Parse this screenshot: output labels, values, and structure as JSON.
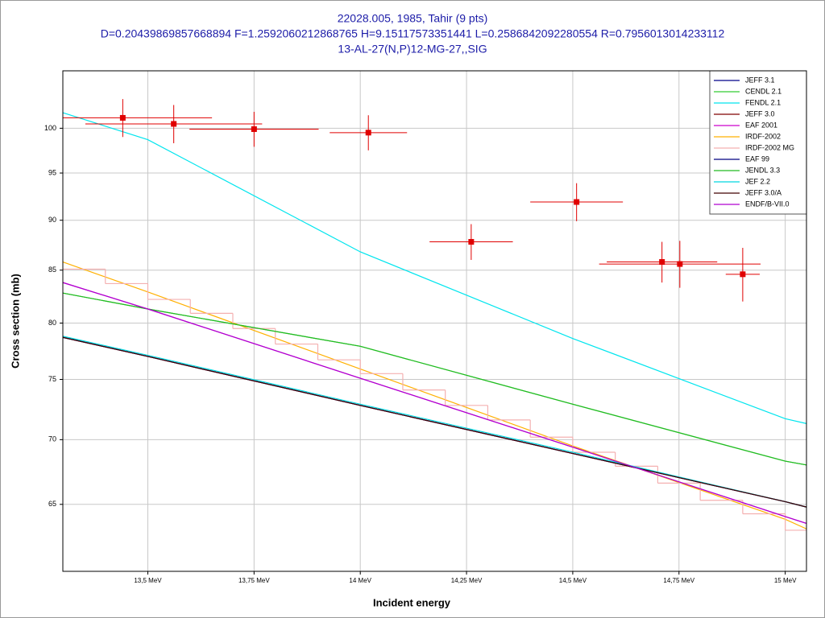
{
  "chart_data": {
    "type": "line",
    "title": [
      "22028.005, 1985, Tahir (9 pts)",
      "D=0.20439869857668894 F=1.2592060212868765 H=9.15117573351441 L=0.2586842092280554 R=0.7956013014233112",
      "13-AL-27(N,P)12-MG-27,,SIG"
    ],
    "xlabel": "Incident energy",
    "ylabel": "Cross section (mb)",
    "xlim": [
      13.3,
      15.05
    ],
    "ylim": [
      60.2,
      106.8
    ],
    "ylog": true,
    "grid": true,
    "legend": "upper right",
    "xticks": [
      {
        "value": 13.5,
        "label": "13,5 MeV"
      },
      {
        "value": 13.75,
        "label": "13,75 MeV"
      },
      {
        "value": 14,
        "label": "14 MeV"
      },
      {
        "value": 14.25,
        "label": "14,25 MeV"
      },
      {
        "value": 14.5,
        "label": "14,5 MeV"
      },
      {
        "value": 14.75,
        "label": "14,75 MeV"
      },
      {
        "value": 15,
        "label": "15 MeV"
      }
    ],
    "yticks": [
      65,
      70,
      75,
      80,
      85,
      90,
      95,
      100
    ],
    "series": [
      {
        "name": "JEFF 3.1",
        "color": "#00008b",
        "x": [
          13.3,
          13.5,
          14.0,
          14.5,
          15.0,
          15.05
        ],
        "values": [
          78.7,
          77.0,
          72.8,
          68.9,
          65.2,
          64.8
        ]
      },
      {
        "name": "CENDL 2.1",
        "color": "#33cc33",
        "x": [
          13.3,
          13.5,
          14.0,
          14.5,
          15.0,
          15.05
        ],
        "values": [
          82.8,
          81.3,
          77.9,
          72.9,
          68.3,
          68.0
        ]
      },
      {
        "name": "FENDL 2.1",
        "color": "#00e5ee",
        "x": [
          13.3,
          13.5,
          14.0,
          14.5,
          15.0,
          15.05
        ],
        "values": [
          101.8,
          98.7,
          86.8,
          78.6,
          71.7,
          71.3
        ]
      },
      {
        "name": "JEFF 3.0",
        "color": "#800000",
        "x": [
          13.3,
          13.5,
          14.0,
          14.5,
          15.0,
          15.05
        ],
        "values": [
          78.7,
          77.0,
          72.8,
          68.9,
          65.2,
          64.8
        ]
      },
      {
        "name": "EAF 2001",
        "color": "#cc00cc",
        "x": [
          13.3,
          13.5,
          14.0,
          14.5,
          15.0,
          15.05
        ],
        "values": [
          83.8,
          81.3,
          75.1,
          69.4,
          64.1,
          63.6
        ]
      },
      {
        "name": "IRDF-2002",
        "color": "#ffb000",
        "x": [
          13.3,
          13.5,
          14.0,
          14.5,
          15.0,
          15.05
        ],
        "values": [
          85.8,
          82.9,
          75.9,
          69.5,
          63.9,
          63.2
        ]
      },
      {
        "name": "IRDF-2002 MG",
        "color": "#f4b0b0",
        "step": true,
        "bins": [
          13.3,
          13.4,
          13.5,
          13.6,
          13.7,
          13.8,
          13.9,
          14.0,
          14.1,
          14.2,
          14.3,
          14.4,
          14.5,
          14.6,
          14.7,
          14.8,
          14.9,
          15.0,
          15.05
        ],
        "values": [
          85.1,
          83.7,
          82.2,
          80.9,
          79.5,
          78.1,
          76.7,
          75.5,
          74.1,
          72.8,
          71.6,
          70.2,
          69.0,
          67.9,
          66.6,
          65.3,
          64.3,
          63.1
        ]
      },
      {
        "name": "EAF 99",
        "color": "#000080",
        "x": [
          13.3,
          13.5,
          14.0,
          14.5,
          15.0,
          15.05
        ],
        "values": [
          78.7,
          77.0,
          72.8,
          68.9,
          65.2,
          64.8
        ]
      },
      {
        "name": "JENDL 3.3",
        "color": "#22bb22",
        "x": [
          13.3,
          13.5,
          14.0,
          14.5,
          15.0,
          15.05
        ],
        "values": [
          82.8,
          81.3,
          77.9,
          72.9,
          68.3,
          68.0
        ]
      },
      {
        "name": "JEF 2.2",
        "color": "#00d8e0",
        "x": [
          13.3,
          13.5,
          14.0,
          14.5,
          15.0,
          15.05
        ],
        "values": [
          78.8,
          77.1,
          72.9,
          69.0,
          65.2,
          64.8
        ]
      },
      {
        "name": "JEFF 3.0/A",
        "color": "#400000",
        "x": [
          13.3,
          13.5,
          14.0,
          14.5,
          15.0,
          15.05
        ],
        "values": [
          78.7,
          77.0,
          72.8,
          68.9,
          65.2,
          64.8
        ]
      },
      {
        "name": "ENDF/B-VII.0",
        "color": "#b000d0",
        "x": [
          13.3,
          13.5,
          14.0,
          14.5,
          15.0,
          15.05
        ],
        "values": [
          83.8,
          81.3,
          75.1,
          69.4,
          64.1,
          63.6
        ]
      }
    ],
    "points": {
      "color": "#e00000",
      "x": [
        13.441,
        13.561,
        13.75,
        14.019,
        14.261,
        14.509,
        14.71,
        14.752,
        14.9
      ],
      "values": [
        101.2,
        100.5,
        99.9,
        99.5,
        87.8,
        91.9,
        85.8,
        85.6,
        84.6
      ],
      "xerr": [
        0.21,
        0.208,
        0.152,
        0.091,
        0.098,
        0.109,
        0.13,
        0.19,
        0.04
      ],
      "yerr": [
        2.2,
        2.2,
        2.0,
        2.0,
        1.8,
        2.0,
        2.0,
        2.3,
        2.6
      ]
    }
  }
}
